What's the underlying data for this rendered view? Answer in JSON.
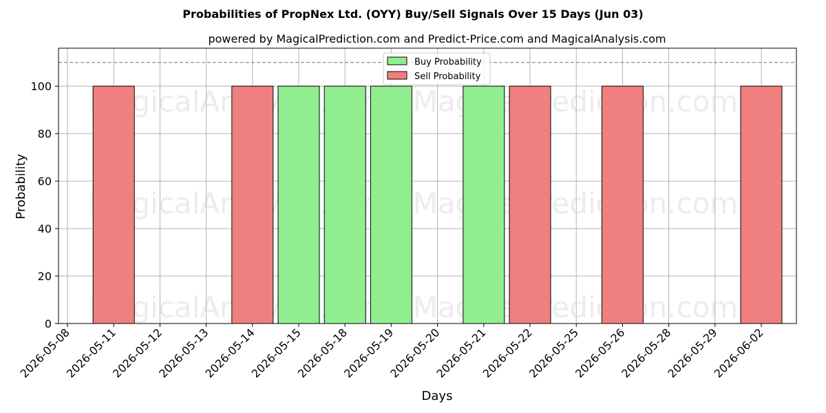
{
  "chart_data": {
    "type": "bar",
    "title": "Probabilities of PropNex Ltd. (OYY) Buy/Sell Signals Over 15 Days (Jun 03)",
    "subtitle": "powered by MagicalPrediction.com and Predict-Price.com and MagicalAnalysis.com",
    "xlabel": "Days",
    "ylabel": "Probability",
    "ylim": [
      0,
      116
    ],
    "yticks": [
      0,
      20,
      40,
      60,
      80,
      100
    ],
    "reference_line": 110,
    "grid": true,
    "legend_position": "top-center",
    "categories": [
      "2026-05-08",
      "2026-05-11",
      "2026-05-12",
      "2026-05-13",
      "2026-05-14",
      "2026-05-15",
      "2026-05-18",
      "2026-05-19",
      "2026-05-20",
      "2026-05-21",
      "2026-05-22",
      "2026-05-25",
      "2026-05-26",
      "2026-05-28",
      "2026-05-29",
      "2026-06-02"
    ],
    "bars": [
      {
        "category": "2026-05-11",
        "series": "Sell Probability",
        "value": 100
      },
      {
        "category": "2026-05-14",
        "series": "Sell Probability",
        "value": 100
      },
      {
        "category": "2026-05-15",
        "series": "Buy Probability",
        "value": 100
      },
      {
        "category": "2026-05-18",
        "series": "Buy Probability",
        "value": 100
      },
      {
        "category": "2026-05-19",
        "series": "Buy Probability",
        "value": 100
      },
      {
        "category": "2026-05-21",
        "series": "Buy Probability",
        "value": 100
      },
      {
        "category": "2026-05-22",
        "series": "Sell Probability",
        "value": 100
      },
      {
        "category": "2026-05-26",
        "series": "Sell Probability",
        "value": 100
      },
      {
        "category": "2026-06-02",
        "series": "Sell Probability",
        "value": 100
      }
    ],
    "series": [
      {
        "name": "Buy Probability",
        "color": "#90ee90"
      },
      {
        "name": "Sell Probability",
        "color": "#f08080"
      }
    ],
    "watermarks": [
      "MagicalAnalysis.com",
      "MagicalPrediction.com"
    ]
  }
}
